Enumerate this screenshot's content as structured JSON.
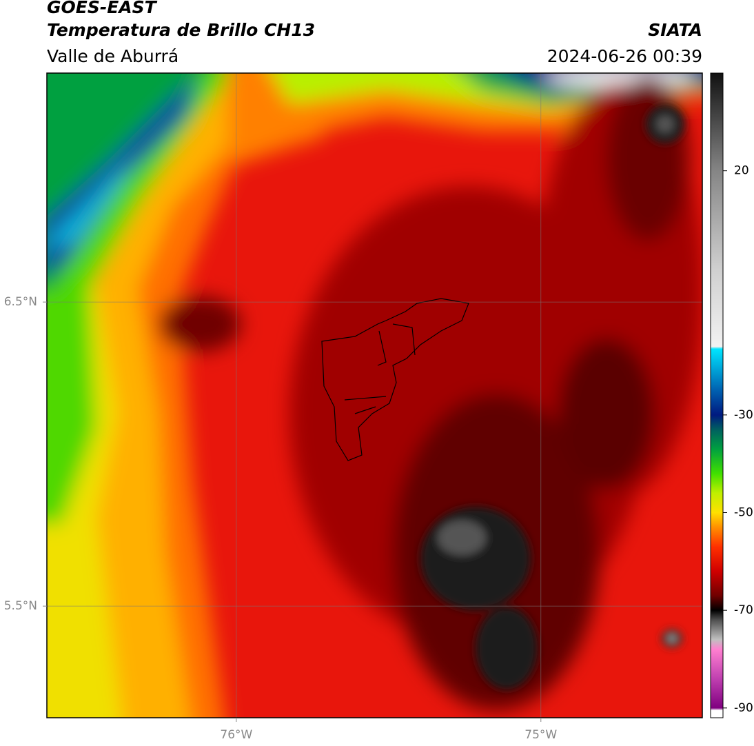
{
  "chart_data": {
    "type": "map",
    "title": "GOES-EAST",
    "subtitle": "Temperatura de Brillo CH13",
    "region": "Valle de Aburrá",
    "source": "SIATA",
    "timestamp": "2024-06-26 00:39",
    "xlim": [
      -76.622,
      -74.47
    ],
    "ylim": [
      5.133,
      7.253
    ],
    "xticks": [
      {
        "value": -76,
        "label": "76°W"
      },
      {
        "value": -75,
        "label": "75°W"
      }
    ],
    "yticks": [
      {
        "value": 6.5,
        "label": "6.5°N"
      },
      {
        "value": 5.5,
        "label": "5.5°N"
      }
    ],
    "grid": true,
    "colorbar": {
      "lim": [
        -92,
        40
      ],
      "ticks": [
        20,
        -30,
        -50,
        -70,
        -90
      ],
      "stops": [
        {
          "value": 40,
          "color": "#111111"
        },
        {
          "value": 20,
          "color": "#858585"
        },
        {
          "value": 0,
          "color": "#cfcfcf"
        },
        {
          "value": -16,
          "color": "#f2f2f2"
        },
        {
          "value": -16.5,
          "color": "#00e5ff"
        },
        {
          "value": -25,
          "color": "#0060b0"
        },
        {
          "value": -30,
          "color": "#001a80"
        },
        {
          "value": -33,
          "color": "#006060"
        },
        {
          "value": -37,
          "color": "#00a040"
        },
        {
          "value": -42,
          "color": "#40e000"
        },
        {
          "value": -46,
          "color": "#c0f000"
        },
        {
          "value": -50,
          "color": "#ffe000"
        },
        {
          "value": -53,
          "color": "#ff9000"
        },
        {
          "value": -57,
          "color": "#ff3000"
        },
        {
          "value": -62,
          "color": "#d00000"
        },
        {
          "value": -67,
          "color": "#700000"
        },
        {
          "value": -70,
          "color": "#000000"
        },
        {
          "value": -72,
          "color": "#505050"
        },
        {
          "value": -76,
          "color": "#c0c0c0"
        },
        {
          "value": -78,
          "color": "#ff80d0"
        },
        {
          "value": -84,
          "color": "#c040b0"
        },
        {
          "value": -90,
          "color": "#800080"
        },
        {
          "value": -90.5,
          "color": "#ffffff"
        },
        {
          "value": -92,
          "color": "#ffffff"
        }
      ]
    }
  }
}
